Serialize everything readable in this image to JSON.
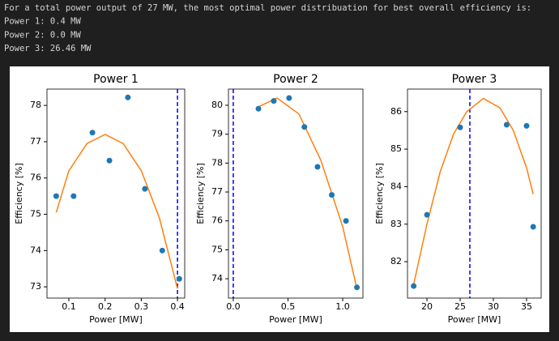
{
  "output": {
    "lines": [
      "For a total power output of 27 MW, the most optimal power distribuation for best overall efficiency is:",
      "Power 1: 0.4 MW",
      "Power 2: 0.0 MW",
      "Power 3: 26.46 MW"
    ]
  },
  "chart_data": [
    {
      "type": "scatter",
      "title": "Power 1",
      "xlabel": "Power [MW]",
      "ylabel": "Efficiency [%]",
      "xlim": [
        0.0395,
        0.42
      ],
      "xticks": [
        0.1,
        0.2,
        0.3,
        0.4
      ],
      "ylim": [
        72.69,
        78.45
      ],
      "yticks": [
        73,
        74,
        75,
        76,
        77,
        78
      ],
      "points": {
        "color": "#1f77b4",
        "x": [
          0.065,
          0.113,
          0.165,
          0.212,
          0.263,
          0.31,
          0.358,
          0.405
        ],
        "y": [
          75.5,
          75.5,
          77.25,
          76.48,
          78.22,
          75.7,
          74.0,
          73.22
        ]
      },
      "fit": {
        "color": "#ff7f0e",
        "x": [
          0.065,
          0.1,
          0.15,
          0.2,
          0.25,
          0.3,
          0.35,
          0.4
        ],
        "y": [
          75.05,
          76.2,
          76.95,
          77.2,
          76.95,
          76.2,
          74.9,
          72.95
        ]
      },
      "vline": 0.4,
      "vline_color": "#0000ff"
    },
    {
      "type": "scatter",
      "title": "Power 2",
      "xlabel": "Power [MW]",
      "ylabel": "Efficiency [%]",
      "xlim": [
        -0.044,
        1.185
      ],
      "xticks": [
        {
          "value": 0,
          "label": "0.0"
        },
        0.5,
        {
          "value": 1,
          "label": "1.0"
        }
      ],
      "ylim": [
        73.33,
        80.56
      ],
      "yticks": [
        74,
        75,
        76,
        77,
        78,
        79,
        80
      ],
      "points": {
        "color": "#1f77b4",
        "x": [
          0.23,
          0.37,
          0.51,
          0.65,
          0.77,
          0.9,
          1.03,
          1.13
        ],
        "y": [
          79.88,
          80.15,
          80.25,
          79.25,
          77.87,
          76.9,
          76.0,
          73.7
        ]
      },
      "fit": {
        "color": "#ff7f0e",
        "x": [
          0.23,
          0.4,
          0.6,
          0.8,
          1.0,
          1.13
        ],
        "y": [
          79.95,
          80.25,
          79.7,
          78.1,
          75.8,
          73.65
        ]
      },
      "vline": 0,
      "vline_color": "#0000ff"
    },
    {
      "type": "scatter",
      "title": "Power 3",
      "xlabel": "Power [MW]",
      "ylabel": "Efficiency [%]",
      "xlim": [
        17.07,
        37.2
      ],
      "xticks": [
        20,
        25,
        30,
        35
      ],
      "ylim": [
        81.03,
        86.6
      ],
      "yticks": [
        82,
        83,
        84,
        85,
        86
      ],
      "points": {
        "color": "#1f77b4",
        "x": [
          18,
          20,
          25,
          32,
          35,
          36
        ],
        "y": [
          81.35,
          83.25,
          85.58,
          85.65,
          85.62,
          82.93
        ]
      },
      "fit": {
        "color": "#ff7f0e",
        "x": [
          18,
          20,
          22,
          24,
          26,
          28.5,
          31,
          33,
          35,
          36
        ],
        "y": [
          81.4,
          83.0,
          84.4,
          85.4,
          86.0,
          86.35,
          86.1,
          85.5,
          84.5,
          83.8
        ]
      },
      "vline": 26.46,
      "vline_color": "#0000ff"
    }
  ]
}
